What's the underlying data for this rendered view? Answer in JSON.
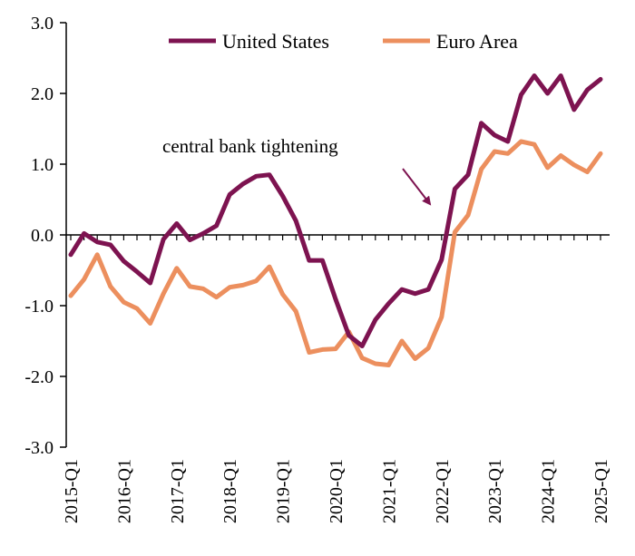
{
  "chart_data": {
    "type": "line",
    "title": "",
    "xlabel": "",
    "ylabel": "",
    "ylim": [
      -3.0,
      3.0
    ],
    "y_ticks": [
      "3.0",
      "2.0",
      "1.0",
      "0.0",
      "-1.0",
      "-2.0",
      "-3.0"
    ],
    "x_tick_labels": [
      "2015-Q1",
      "2016-Q1",
      "2017-Q1",
      "2018-Q1",
      "2019-Q1",
      "2020-Q1",
      "2021-Q1",
      "2022-Q1",
      "2023-Q1",
      "2024-Q1",
      "2025-Q1"
    ],
    "x": [
      "2015-Q1",
      "2015-Q2",
      "2015-Q3",
      "2015-Q4",
      "2016-Q1",
      "2016-Q2",
      "2016-Q3",
      "2016-Q4",
      "2017-Q1",
      "2017-Q2",
      "2017-Q3",
      "2017-Q4",
      "2018-Q1",
      "2018-Q2",
      "2018-Q3",
      "2018-Q4",
      "2019-Q1",
      "2019-Q2",
      "2019-Q3",
      "2019-Q4",
      "2020-Q1",
      "2020-Q2",
      "2020-Q3",
      "2020-Q4",
      "2021-Q1",
      "2021-Q2",
      "2021-Q3",
      "2021-Q4",
      "2022-Q1",
      "2022-Q2",
      "2022-Q3",
      "2022-Q4",
      "2023-Q1",
      "2023-Q2",
      "2023-Q3",
      "2023-Q4",
      "2024-Q1",
      "2024-Q2",
      "2024-Q3",
      "2024-Q4",
      "2025-Q1"
    ],
    "series": [
      {
        "name": "United States",
        "color": "#7d1350",
        "values": [
          -0.28,
          0.02,
          -0.1,
          -0.14,
          -0.37,
          -0.52,
          -0.68,
          -0.06,
          0.16,
          -0.07,
          0.02,
          0.13,
          0.57,
          0.72,
          0.83,
          0.85,
          0.55,
          0.2,
          -0.36,
          -0.36,
          -0.91,
          -1.42,
          -1.57,
          -1.2,
          -0.97,
          -0.77,
          -0.83,
          -0.77,
          -0.35,
          0.65,
          0.85,
          1.58,
          1.41,
          1.32,
          1.98,
          2.25,
          2.0,
          2.25,
          1.77,
          2.05,
          2.2
        ]
      },
      {
        "name": "Euro Area",
        "color": "#ec8f5e",
        "values": [
          -0.86,
          -0.63,
          -0.28,
          -0.73,
          -0.95,
          -1.04,
          -1.25,
          -0.83,
          -0.47,
          -0.73,
          -0.76,
          -0.88,
          -0.74,
          -0.71,
          -0.65,
          -0.45,
          -0.84,
          -1.08,
          -1.66,
          -1.62,
          -1.61,
          -1.37,
          -1.74,
          -1.82,
          -1.84,
          -1.5,
          -1.75,
          -1.6,
          -1.16,
          0.04,
          0.28,
          0.93,
          1.18,
          1.15,
          1.32,
          1.28,
          0.95,
          1.12,
          0.99,
          0.89,
          1.15
        ]
      }
    ],
    "legend_position": "top",
    "grid": false,
    "annotations": [
      {
        "text": "central bank tightening",
        "arrow_to_x": "2022-Q1",
        "arrow_to_y": 0.4
      }
    ]
  }
}
